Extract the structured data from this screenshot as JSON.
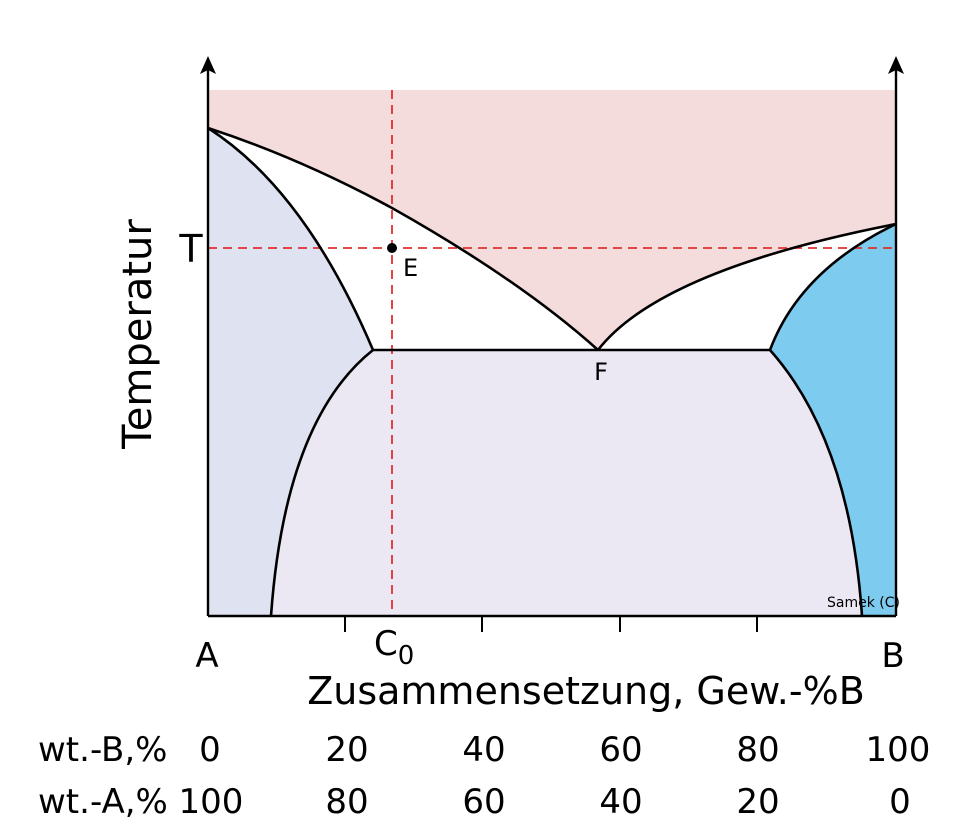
{
  "axes": {
    "y_label": "Temperatur",
    "x_label": "Zusammensetzung, Gew.-%B",
    "left_end_label": "A",
    "right_end_label": "B"
  },
  "markers": {
    "temperature_label": "T",
    "composition_label": "C",
    "composition_subscript": "0",
    "point_e_label": "E",
    "point_f_label": "F"
  },
  "credit": "Samek (C)",
  "scale_rows": [
    {
      "label": "wt.-B,%",
      "values": [
        "0",
        "20",
        "40",
        "60",
        "80",
        "100"
      ]
    },
    {
      "label": "wt.-A,%",
      "values": [
        "100",
        "80",
        "60",
        "40",
        "20",
        "0"
      ]
    }
  ],
  "colors": {
    "liquid_region": "#f5dcdc",
    "alpha_region": "#dfe3f1",
    "beta_region": "#7ecbf0",
    "two_solid_region": "#ebe8f3",
    "guide_line": "#e03030",
    "outline": "#000000"
  }
}
